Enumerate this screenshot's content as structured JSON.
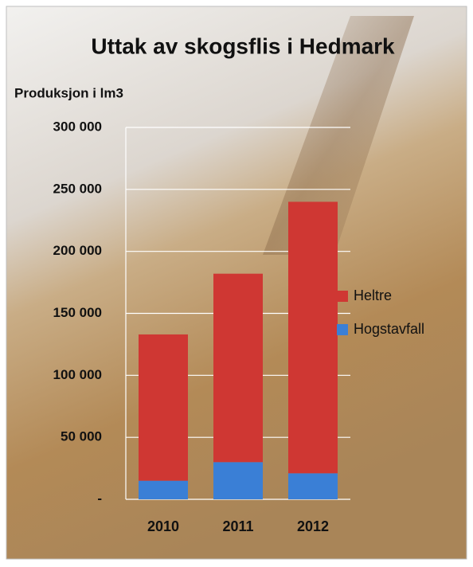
{
  "chart_data": {
    "type": "stacked-bar",
    "title": "Uttak av skogsflis i Hedmark",
    "y_label": "Produksjon i lm3",
    "categories": [
      "2010",
      "2011",
      "2012"
    ],
    "series": [
      {
        "name": "Hogstavfall",
        "color": "#3a7fd6",
        "values": [
          15000,
          30000,
          21000
        ]
      },
      {
        "name": "Heltre",
        "color": "#cf3733",
        "values": [
          118000,
          152000,
          219000
        ]
      }
    ],
    "ylim": [
      0,
      300000
    ],
    "yticks": [
      {
        "value": 0,
        "label": "-"
      },
      {
        "value": 50000,
        "label": "50 000"
      },
      {
        "value": 100000,
        "label": "100 000"
      },
      {
        "value": 150000,
        "label": "150 000"
      },
      {
        "value": 200000,
        "label": "200 000"
      },
      {
        "value": 250000,
        "label": "250 000"
      },
      {
        "value": 300000,
        "label": "300 000"
      }
    ],
    "grid": true
  }
}
